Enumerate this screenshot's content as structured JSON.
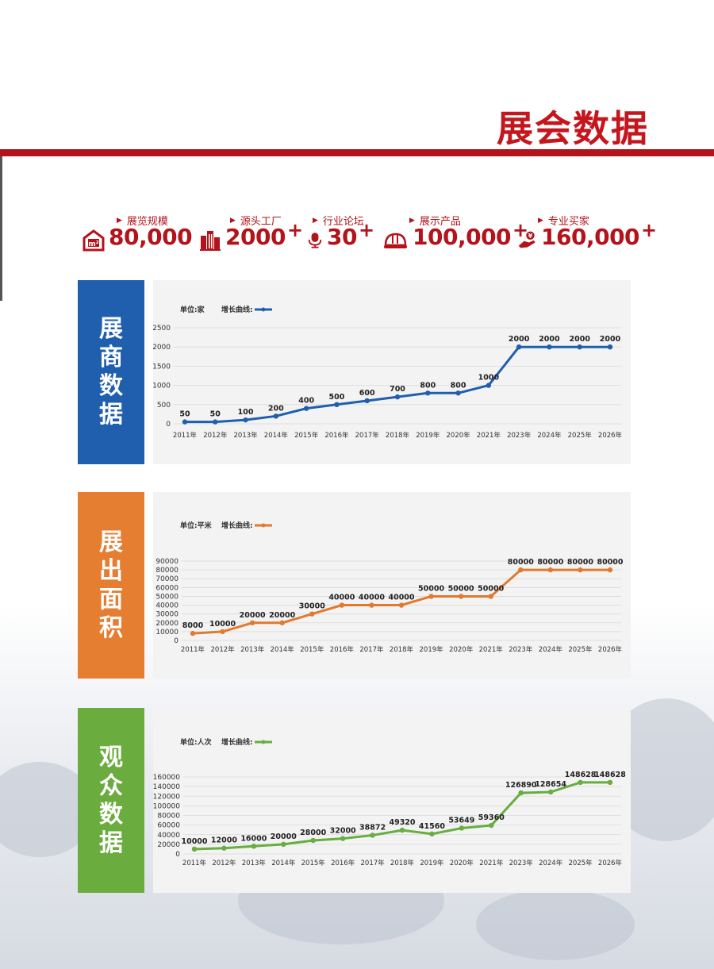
{
  "page": {
    "title": "展会数据"
  },
  "stats": [
    {
      "label": "展览规模",
      "value": "80,000",
      "plus": "",
      "icon": "venue-m2-icon"
    },
    {
      "label": "源头工厂",
      "value": "2000",
      "plus": "+",
      "icon": "factory-buildings-icon"
    },
    {
      "label": "行业论坛",
      "value": "30",
      "plus": "+",
      "icon": "microphone-icon"
    },
    {
      "label": "展示产品",
      "value": "100,000",
      "plus": "+",
      "icon": "hard-hat-icon"
    },
    {
      "label": "专业买家",
      "value": "160,000",
      "plus": "+",
      "icon": "hand-money-icon"
    }
  ],
  "sections": [
    {
      "band_label": "展商数据",
      "color": "#1f5fae",
      "band_color": "#1f5fae"
    },
    {
      "band_label": "展出面积",
      "color": "#e17a2f",
      "band_color": "#e67e32"
    },
    {
      "band_label": "观众数据",
      "color": "#67ad3f",
      "band_color": "#6aac3e"
    }
  ],
  "chart_data": [
    {
      "type": "line",
      "unit_label": "单位:家",
      "legend_label": "增长曲线:",
      "categories": [
        "2011年",
        "2012年",
        "2013年",
        "2014年",
        "2015年",
        "2016年",
        "2017年",
        "2018年",
        "2019年",
        "2020年",
        "2021年",
        "2023年",
        "2024年",
        "2025年",
        "2026年"
      ],
      "values": [
        50,
        50,
        100,
        200,
        400,
        500,
        600,
        700,
        800,
        800,
        1000,
        2000,
        2000,
        2000,
        2000
      ],
      "yticks": [
        0,
        500,
        1000,
        1500,
        2000,
        2500
      ],
      "ylim": [
        0,
        2500
      ],
      "grid": true
    },
    {
      "type": "line",
      "unit_label": "单位:平米",
      "legend_label": "增长曲线:",
      "categories": [
        "2011年",
        "2012年",
        "2013年",
        "2014年",
        "2015年",
        "2016年",
        "2017年",
        "2018年",
        "2019年",
        "2020年",
        "2021年",
        "2023年",
        "2024年",
        "2025年",
        "2026年"
      ],
      "values": [
        8000,
        10000,
        20000,
        20000,
        30000,
        40000,
        40000,
        40000,
        50000,
        50000,
        50000,
        80000,
        80000,
        80000,
        80000
      ],
      "yticks": [
        0,
        10000,
        20000,
        30000,
        40000,
        50000,
        60000,
        70000,
        80000,
        90000
      ],
      "ylim": [
        0,
        90000
      ],
      "grid": true
    },
    {
      "type": "line",
      "unit_label": "单位:人次",
      "legend_label": "增长曲线:",
      "categories": [
        "2011年",
        "2012年",
        "2013年",
        "2014年",
        "2015年",
        "2016年",
        "2017年",
        "2018年",
        "2019年",
        "2020年",
        "2021年",
        "2023年",
        "2024年",
        "2025年",
        "2026年"
      ],
      "values": [
        10000,
        12000,
        16000,
        20000,
        28000,
        32000,
        38872,
        49320,
        41560,
        53649,
        59360,
        126890,
        128654,
        148628,
        148628
      ],
      "yticks": [
        0,
        20000,
        40000,
        60000,
        80000,
        100000,
        120000,
        140000,
        160000
      ],
      "ylim": [
        0,
        160000
      ],
      "grid": true
    }
  ]
}
